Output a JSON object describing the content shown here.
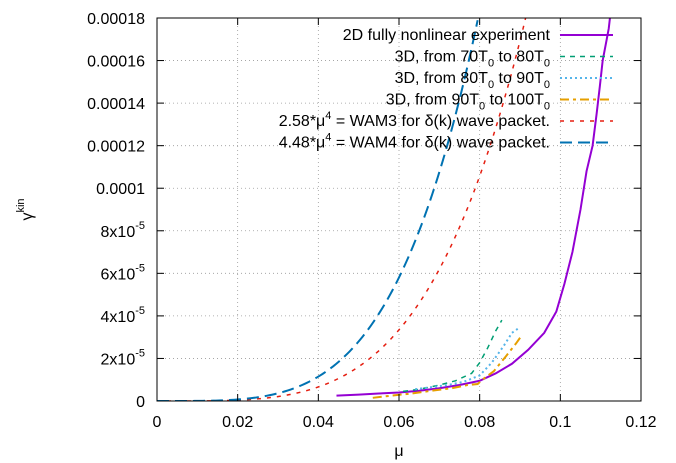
{
  "chart_data": {
    "type": "line",
    "xlabel": "μ",
    "ylabel": {
      "base": "γ",
      "sup": "kin"
    },
    "xlim": [
      0,
      0.12
    ],
    "ylim": [
      0,
      0.00018
    ],
    "grid": true,
    "legend_position": "top-right",
    "x_ticks": [
      {
        "value": 0,
        "label": "0"
      },
      {
        "value": 0.02,
        "label": "0.02"
      },
      {
        "value": 0.04,
        "label": "0.04"
      },
      {
        "value": 0.06,
        "label": "0.06"
      },
      {
        "value": 0.08,
        "label": "0.08"
      },
      {
        "value": 0.1,
        "label": "0.1"
      },
      {
        "value": 0.12,
        "label": "0.12"
      }
    ],
    "y_ticks": [
      {
        "value": 0,
        "label": "0",
        "sup": ""
      },
      {
        "value": 2e-05,
        "label": "2x10",
        "sup": "-5"
      },
      {
        "value": 4e-05,
        "label": "4x10",
        "sup": "-5"
      },
      {
        "value": 6e-05,
        "label": "6x10",
        "sup": "-5"
      },
      {
        "value": 8e-05,
        "label": "8x10",
        "sup": "-5"
      },
      {
        "value": 0.0001,
        "label": "0.0001",
        "sup": ""
      },
      {
        "value": 0.00012,
        "label": "0.00012",
        "sup": ""
      },
      {
        "value": 0.00014,
        "label": "0.00014",
        "sup": ""
      },
      {
        "value": 0.00016,
        "label": "0.00016",
        "sup": ""
      },
      {
        "value": 0.00018,
        "label": "0.00018",
        "sup": ""
      }
    ],
    "series": [
      {
        "id": "s2d",
        "legend": [
          {
            "t": "2D fully nonlinear experiment"
          }
        ],
        "color": "#9400d3",
        "dash": "",
        "width": 2,
        "x": [
          0.0445,
          0.05,
          0.055,
          0.06,
          0.065,
          0.07,
          0.075,
          0.08,
          0.084,
          0.088,
          0.092,
          0.096,
          0.099,
          0.101,
          0.103,
          0.105,
          0.1065,
          0.108,
          0.109,
          0.1098,
          0.1105,
          0.111,
          0.1115,
          0.112,
          0.1123
        ],
        "y": [
          2.5e-06,
          3e-06,
          3.5e-06,
          4e-06,
          4.8e-06,
          6e-06,
          7.5e-06,
          9.5e-06,
          1.3e-05,
          1.75e-05,
          2.4e-05,
          3.2e-05,
          4.2e-05,
          5.5e-05,
          7e-05,
          9e-05,
          0.000108,
          0.00012,
          0.000135,
          0.000148,
          0.00016,
          0.000165,
          0.00017,
          0.000175,
          0.00018
        ]
      },
      {
        "id": "s70",
        "legend": [
          {
            "t": "3D, from 70T"
          },
          {
            "t": "0",
            "sub": true
          },
          {
            "t": " to 80T"
          },
          {
            "t": "0",
            "sub": true
          }
        ],
        "color": "#009e73",
        "dash": "5,5",
        "width": 1.5,
        "x": [
          0.061,
          0.065,
          0.07,
          0.074,
          0.078,
          0.08,
          0.082,
          0.084,
          0.0855
        ],
        "y": [
          4.5e-06,
          5.5e-06,
          7.5e-06,
          9.5e-06,
          1.3e-05,
          1.8e-05,
          2.5e-05,
          3.3e-05,
          3.8e-05
        ]
      },
      {
        "id": "s80",
        "legend": [
          {
            "t": "3D, from 80T"
          },
          {
            "t": "0",
            "sub": true
          },
          {
            "t": " to 90T"
          },
          {
            "t": "0",
            "sub": true
          }
        ],
        "color": "#56b4e9",
        "dash": "2,3",
        "width": 2,
        "x": [
          0.064,
          0.068,
          0.072,
          0.076,
          0.08,
          0.083,
          0.086,
          0.088,
          0.0895
        ],
        "y": [
          5.5e-06,
          6.5e-06,
          7.5e-06,
          9e-06,
          1.2e-05,
          1.8e-05,
          2.6e-05,
          3.2e-05,
          3.4e-05
        ]
      },
      {
        "id": "s90",
        "legend": [
          {
            "t": "3D, from 90T"
          },
          {
            "t": "0",
            "sub": true
          },
          {
            "t": " to 100T"
          },
          {
            "t": "0",
            "sub": true
          }
        ],
        "color": "#e69f00",
        "dash": "9,4,3,4",
        "width": 2,
        "x": [
          0.0535,
          0.058,
          0.063,
          0.068,
          0.073,
          0.077,
          0.0795,
          0.081,
          0.0835,
          0.0865,
          0.089,
          0.0905
        ],
        "y": [
          1.5e-06,
          2.5e-06,
          3.5e-06,
          4.8e-06,
          6e-06,
          7.5e-06,
          8e-06,
          1.05e-05,
          1.4e-05,
          2.1e-05,
          2.7e-05,
          3.1e-05
        ]
      },
      {
        "id": "wam3",
        "legend": [
          {
            "t": "2.58*μ"
          },
          {
            "t": "4",
            "sup": true
          },
          {
            "t": " = WAM3 for δ(k) wave packet."
          }
        ],
        "color": "#e51e10",
        "dash": "4,6",
        "width": 1.5,
        "formula": {
          "coef": 2.58,
          "power": 4,
          "x0": 0.0,
          "x1": 0.0915
        },
        "x": [],
        "y": []
      },
      {
        "id": "wam4",
        "legend": [
          {
            "t": "4.48*μ"
          },
          {
            "t": "4",
            "sup": true
          },
          {
            "t": " = WAM4 for δ(k) wave packet."
          }
        ],
        "color": "#0072b2",
        "dash": "12,6",
        "width": 2,
        "formula": {
          "coef": 4.48,
          "power": 4,
          "x0": 0.0,
          "x1": 0.0795
        },
        "x": [],
        "y": []
      }
    ]
  }
}
